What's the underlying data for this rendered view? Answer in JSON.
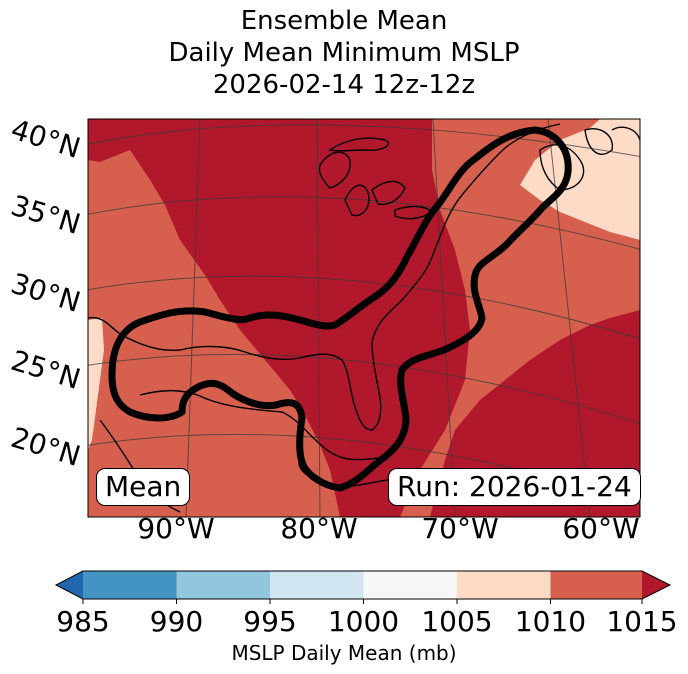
{
  "title": {
    "line1": "Ensemble Mean",
    "line2": "Daily Mean Minimum MSLP",
    "line3": "2026-02-14 12z-12z"
  },
  "lat_labels": [
    "40°N",
    "35°N",
    "30°N",
    "25°N",
    "20°N"
  ],
  "lon_labels": [
    "90°W",
    "80°W",
    "70°W",
    "60°W"
  ],
  "mean_label": "Mean",
  "run_label": "Run: 2026-01-24",
  "colorbar": {
    "label": "MSLP Daily Mean (mb)",
    "ticks": [
      "985",
      "990",
      "995",
      "1000",
      "1005",
      "1010",
      "1015"
    ],
    "colors": {
      "below_985": "#2166ac",
      "985_990": "#4393c3",
      "990_995": "#92c5de",
      "995_1000": "#d1e5f0",
      "1000_1005": "#f7f7f7",
      "1005_1010": "#fddbc7",
      "1010_1015": "#d6604d",
      "above_1015": "#b2182b"
    }
  },
  "field_colors": {
    "high": "#b2182b",
    "mid": "#d6604d",
    "low": "#fddbc7",
    "contour": "#000000",
    "coast": "#000000"
  }
}
